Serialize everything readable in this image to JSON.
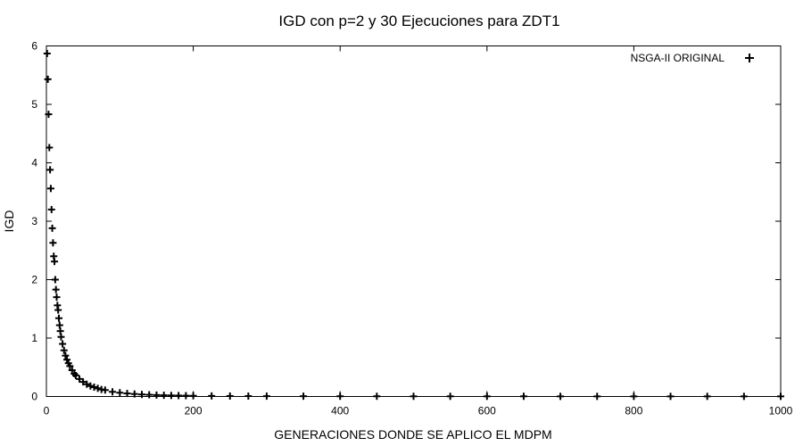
{
  "chart_data": {
    "type": "scatter",
    "title": "IGD con p=2 y 30 Ejecuciones para ZDT1",
    "xlabel": "GENERACIONES DONDE SE APLICO EL MDPM",
    "ylabel": "IGD",
    "xlim": [
      0,
      1000
    ],
    "ylim": [
      0,
      6
    ],
    "xticks": [
      0,
      200,
      400,
      600,
      800,
      1000
    ],
    "yticks": [
      0,
      1,
      2,
      3,
      4,
      5,
      6
    ],
    "grid": false,
    "legend_position": "top-right",
    "marker": "plus",
    "series": [
      {
        "name": "NSGA-II ORIGINAL",
        "color": "#000000",
        "x": [
          1,
          2,
          3,
          4,
          5,
          6,
          7,
          8,
          9,
          10,
          11,
          12,
          13,
          14,
          15,
          16,
          17,
          18,
          19,
          20,
          22,
          24,
          26,
          28,
          30,
          32,
          35,
          38,
          40,
          45,
          50,
          55,
          60,
          65,
          70,
          75,
          80,
          90,
          100,
          110,
          120,
          130,
          140,
          150,
          160,
          170,
          180,
          190,
          200,
          225,
          250,
          275,
          300,
          350,
          400,
          450,
          500,
          550,
          600,
          650,
          700,
          750,
          800,
          850,
          900,
          950,
          1000
        ],
        "y": [
          5.87,
          5.43,
          4.83,
          4.26,
          3.88,
          3.56,
          3.2,
          2.88,
          2.63,
          2.4,
          2.31,
          2.0,
          1.83,
          1.7,
          1.56,
          1.48,
          1.34,
          1.22,
          1.12,
          1.02,
          0.9,
          0.79,
          0.7,
          0.63,
          0.57,
          0.52,
          0.45,
          0.39,
          0.36,
          0.3,
          0.25,
          0.21,
          0.18,
          0.16,
          0.14,
          0.12,
          0.11,
          0.08,
          0.065,
          0.052,
          0.043,
          0.035,
          0.03,
          0.025,
          0.021,
          0.018,
          0.016,
          0.014,
          0.012,
          0.01,
          0.008,
          0.007,
          0.006,
          0.005,
          0.004,
          0.004,
          0.003,
          0.003,
          0.003,
          0.003,
          0.002,
          0.002,
          0.002,
          0.002,
          0.002,
          0.002,
          0.002
        ]
      }
    ]
  }
}
